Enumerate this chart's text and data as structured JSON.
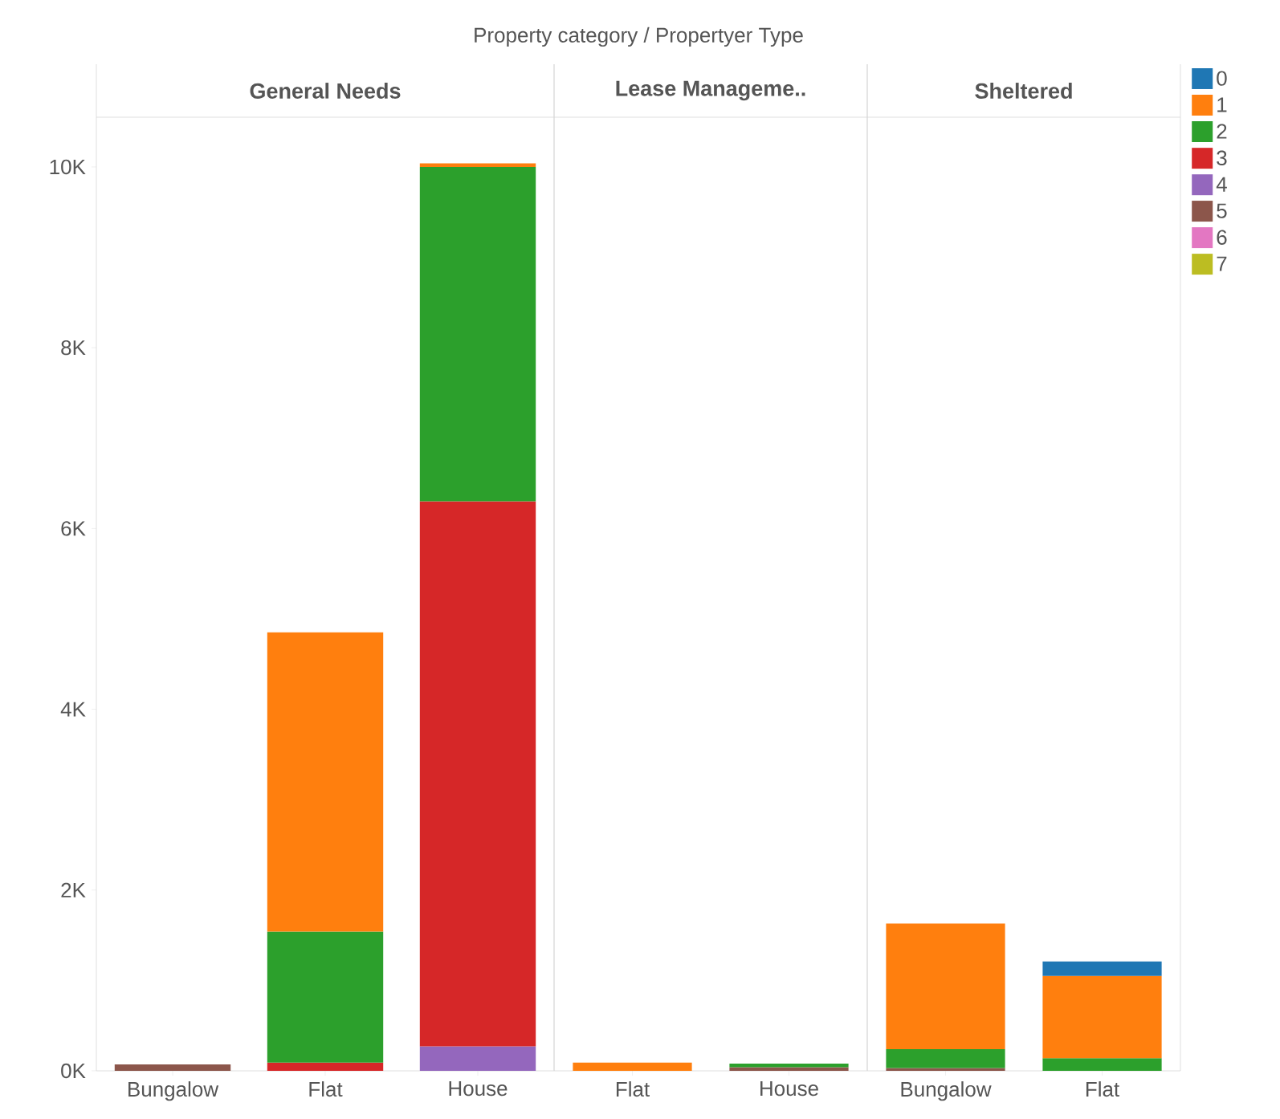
{
  "chart_data": [
    {
      "type": "bar",
      "stacked": true,
      "title": "General Needs",
      "annotations": [
        "Property category  /  Propertyer Type"
      ],
      "categories": [
        "Bungalow",
        "Flat",
        "House"
      ],
      "ylim": [
        0,
        10550
      ],
      "yticks": [
        {
          "value": 0,
          "label": "0K"
        },
        {
          "value": 2000,
          "label": "2K"
        },
        {
          "value": 4000,
          "label": "4K"
        },
        {
          "value": 6000,
          "label": "6K"
        },
        {
          "value": 8000,
          "label": "8K"
        },
        {
          "value": 10000,
          "label": "10K"
        }
      ],
      "legend": false,
      "series": [
        {
          "color": "#bcbd22",
          "values": [
            null,
            null,
            null
          ]
        },
        {
          "color": "#e377c2",
          "values": [
            null,
            null,
            null
          ]
        },
        {
          "color": "#8c564b",
          "values": [
            70,
            null,
            null
          ]
        },
        {
          "color": "#9467bd",
          "values": [
            null,
            null,
            270
          ]
        },
        {
          "color": "#d62728",
          "values": [
            null,
            90,
            6030
          ]
        },
        {
          "color": "#2ca02c",
          "values": [
            null,
            1450,
            3700
          ]
        },
        {
          "color": "#ff7f0e",
          "values": [
            null,
            3310,
            40
          ]
        },
        {
          "color": "#1f77b4",
          "values": [
            null,
            null,
            null
          ]
        }
      ]
    },
    {
      "type": "bar",
      "stacked": true,
      "title": "Lease Manageme..",
      "categories": [
        "Flat",
        "House"
      ],
      "ylim": [
        0,
        10550
      ],
      "tick_labels": "x",
      "legend": false,
      "series": [
        {
          "color": "#bcbd22",
          "values": [
            null,
            null
          ]
        },
        {
          "color": "#e377c2",
          "values": [
            null,
            null
          ]
        },
        {
          "color": "#8c564b",
          "values": [
            null,
            40
          ]
        },
        {
          "color": "#9467bd",
          "values": [
            null,
            null
          ]
        },
        {
          "color": "#d62728",
          "values": [
            null,
            null
          ]
        },
        {
          "color": "#2ca02c",
          "values": [
            null,
            40
          ]
        },
        {
          "color": "#ff7f0e",
          "values": [
            90,
            null
          ]
        },
        {
          "color": "#1f77b4",
          "values": [
            null,
            null
          ]
        }
      ]
    },
    {
      "type": "bar",
      "stacked": true,
      "title": "Sheltered",
      "categories": [
        "Bungalow",
        "Flat"
      ],
      "ylim": [
        0,
        10550
      ],
      "tick_labels": "x",
      "legend": "right",
      "series": [
        {
          "name": "7",
          "color": "#bcbd22",
          "values": [
            null,
            null
          ]
        },
        {
          "name": "6",
          "color": "#e377c2",
          "values": [
            null,
            null
          ]
        },
        {
          "name": "5",
          "color": "#8c564b",
          "values": [
            30,
            null
          ]
        },
        {
          "name": "4",
          "color": "#9467bd",
          "values": [
            null,
            null
          ]
        },
        {
          "name": "3",
          "color": "#d62728",
          "values": [
            null,
            null
          ]
        },
        {
          "name": "2",
          "color": "#2ca02c",
          "values": [
            210,
            140
          ]
        },
        {
          "name": "1",
          "color": "#ff7f0e",
          "values": [
            1390,
            910
          ]
        },
        {
          "name": "0",
          "color": "#1f77b4",
          "values": [
            null,
            160
          ]
        }
      ]
    }
  ]
}
